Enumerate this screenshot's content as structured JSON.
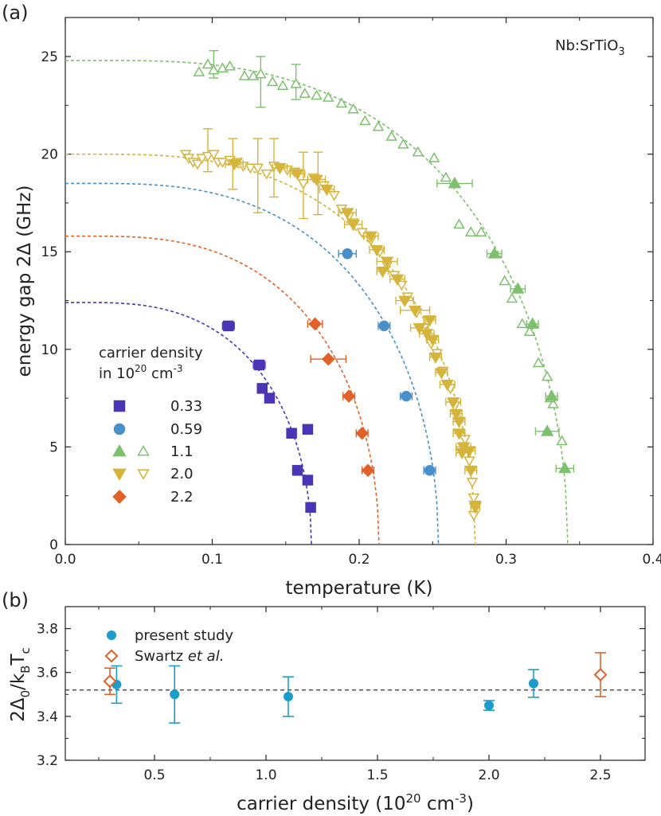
{
  "chart_data": [
    {
      "panel": "(a)",
      "type": "scatter",
      "annotation": {
        "base": "Nb:SrTiO",
        "sub": "3"
      },
      "xlabel": "temperature (K)",
      "ylabel": "energy gap 2Δ (GHz)",
      "xlim": [
        0.0,
        0.4
      ],
      "ylim": [
        0,
        27
      ],
      "xticks": [
        "0.0",
        "0.1",
        "0.2",
        "0.3",
        "0.4"
      ],
      "yticks": [
        "0",
        "5",
        "10",
        "15",
        "20",
        "25"
      ],
      "legend": {
        "title_line1": "carrier density",
        "title_line2_base": "in 10",
        "title_line2_sup1": "20",
        "title_line2_mid": " cm",
        "title_line2_sup2": "-3",
        "position": "lower-left"
      },
      "series": [
        {
          "name": "0.33",
          "color": "#4b35b5",
          "marker": "square",
          "fit": {
            "gap0": 12.4,
            "tc": 0.1675
          },
          "filled": [
            [
              0.111,
              11.2
            ],
            [
              0.132,
              9.2
            ],
            [
              0.134,
              8.0
            ],
            [
              0.139,
              7.5
            ],
            [
              0.154,
              5.7
            ],
            [
              0.165,
              5.9
            ],
            [
              0.158,
              3.8
            ],
            [
              0.165,
              3.3
            ],
            [
              0.167,
              1.9
            ]
          ],
          "xerr": [
            0.004,
            0.004,
            0.002,
            0.002,
            0.003,
            0.002,
            0.003,
            0.002,
            0.002
          ]
        },
        {
          "name": "0.59",
          "color": "#4a90c8",
          "marker": "circle",
          "fit": {
            "gap0": 18.5,
            "tc": 0.254
          },
          "filled": [
            [
              0.192,
              14.9
            ],
            [
              0.217,
              11.2
            ],
            [
              0.232,
              7.6
            ],
            [
              0.248,
              3.8
            ]
          ],
          "xerr": [
            0.006,
            0.004,
            0.004,
            0.004
          ]
        },
        {
          "name": "1.1",
          "color": "#7ec06e",
          "marker": "triangle-up",
          "fit": {
            "gap0": 24.8,
            "tc": 0.342
          },
          "filled": [
            [
              0.265,
              18.5
            ],
            [
              0.292,
              14.9
            ],
            [
              0.308,
              13.1
            ],
            [
              0.318,
              11.3
            ],
            [
              0.331,
              7.6
            ],
            [
              0.328,
              5.8
            ],
            [
              0.34,
              3.9
            ]
          ],
          "xerr": [
            0.012,
            0.005,
            0.005,
            0.004,
            0.004,
            0.008,
            0.006
          ],
          "open": [
            [
              0.091,
              24.2
            ],
            [
              0.097,
              24.6
            ],
            [
              0.101,
              24.3
            ],
            [
              0.107,
              24.4
            ],
            [
              0.112,
              24.5
            ],
            [
              0.122,
              24.0
            ],
            [
              0.128,
              24.0
            ],
            [
              0.133,
              24.1
            ],
            [
              0.141,
              23.7
            ],
            [
              0.148,
              23.5
            ],
            [
              0.157,
              23.6
            ],
            [
              0.163,
              23.1
            ],
            [
              0.171,
              23.0
            ],
            [
              0.179,
              22.9
            ],
            [
              0.188,
              22.6
            ],
            [
              0.196,
              22.3
            ],
            [
              0.204,
              21.7
            ],
            [
              0.213,
              21.4
            ],
            [
              0.222,
              20.9
            ],
            [
              0.23,
              20.5
            ],
            [
              0.24,
              20.1
            ],
            [
              0.251,
              19.8
            ],
            [
              0.259,
              18.8
            ],
            [
              0.268,
              16.4
            ],
            [
              0.276,
              16.0
            ],
            [
              0.283,
              16.0
            ],
            [
              0.299,
              13.5
            ],
            [
              0.304,
              12.6
            ],
            [
              0.311,
              11.3
            ],
            [
              0.316,
              10.9
            ],
            [
              0.322,
              9.3
            ],
            [
              0.328,
              8.6
            ],
            [
              0.332,
              7.2
            ],
            [
              0.338,
              5.3
            ],
            [
              0.33,
              7.5
            ]
          ],
          "open_yerr": [
            [
              0.101,
              24.6,
              0.7
            ],
            [
              0.133,
              23.7,
              1.3
            ],
            [
              0.157,
              23.7,
              0.9
            ]
          ]
        },
        {
          "name": "2.0",
          "color": "#d4b43a",
          "marker": "triangle-down",
          "fit": {
            "gap0": 20.0,
            "tc": 0.279
          },
          "filled": [
            [
              0.115,
              19.5
            ],
            [
              0.146,
              19.3
            ],
            [
              0.158,
              19.0
            ],
            [
              0.171,
              18.7
            ],
            [
              0.178,
              18.2
            ],
            [
              0.192,
              17.0
            ],
            [
              0.196,
              16.4
            ],
            [
              0.208,
              15.8
            ],
            [
              0.212,
              15.1
            ],
            [
              0.216,
              14.0
            ],
            [
              0.219,
              14.5
            ],
            [
              0.226,
              13.6
            ],
            [
              0.231,
              12.5
            ],
            [
              0.238,
              12.0
            ],
            [
              0.241,
              11.1
            ],
            [
              0.246,
              10.8
            ],
            [
              0.248,
              11.5
            ],
            [
              0.25,
              10.5
            ],
            [
              0.252,
              9.6
            ],
            [
              0.256,
              8.8
            ],
            [
              0.26,
              8.2
            ],
            [
              0.264,
              7.3
            ],
            [
              0.266,
              6.7
            ],
            [
              0.268,
              6.3
            ],
            [
              0.268,
              5.7
            ],
            [
              0.271,
              5.0
            ],
            [
              0.275,
              4.8
            ],
            [
              0.27,
              4.7
            ],
            [
              0.276,
              3.8
            ],
            [
              0.279,
              2.0
            ],
            [
              0.279,
              1.9
            ]
          ],
          "xerr": [
            0.006,
            0.005,
            0.005,
            0.006,
            0.005,
            0.006,
            0.006,
            0.005,
            0.005,
            0.004,
            0.007,
            0.005,
            0.006,
            0.01,
            0.006,
            0.005,
            0.004,
            0.004,
            0.004,
            0.004,
            0.005,
            0.005,
            0.004,
            0.004,
            0.004,
            0.005,
            0.004,
            0.004,
            0.004,
            0.003,
            0.003
          ],
          "open": [
            [
              0.082,
              20.0
            ],
            [
              0.084,
              19.8
            ],
            [
              0.087,
              19.6
            ],
            [
              0.09,
              19.5
            ],
            [
              0.093,
              19.8
            ],
            [
              0.097,
              19.9
            ],
            [
              0.101,
              20.0
            ],
            [
              0.104,
              19.6
            ],
            [
              0.107,
              19.6
            ],
            [
              0.112,
              19.7
            ],
            [
              0.117,
              19.6
            ],
            [
              0.121,
              19.4
            ],
            [
              0.126,
              19.3
            ],
            [
              0.131,
              19.3
            ],
            [
              0.137,
              19.0
            ],
            [
              0.142,
              19.4
            ],
            [
              0.151,
              19.2
            ],
            [
              0.156,
              19.1
            ],
            [
              0.162,
              18.5
            ],
            [
              0.169,
              18.8
            ],
            [
              0.176,
              18.4
            ],
            [
              0.183,
              17.9
            ],
            [
              0.188,
              17.2
            ],
            [
              0.193,
              16.8
            ],
            [
              0.196,
              16.5
            ],
            [
              0.202,
              16.0
            ],
            [
              0.208,
              15.6
            ],
            [
              0.214,
              15.0
            ],
            [
              0.219,
              14.3
            ],
            [
              0.224,
              13.8
            ],
            [
              0.229,
              13.3
            ],
            [
              0.233,
              12.7
            ],
            [
              0.239,
              11.9
            ],
            [
              0.244,
              11.1
            ],
            [
              0.249,
              10.3
            ],
            [
              0.253,
              9.8
            ],
            [
              0.257,
              8.9
            ],
            [
              0.262,
              8.0
            ],
            [
              0.265,
              7.1
            ],
            [
              0.268,
              6.3
            ],
            [
              0.272,
              5.4
            ],
            [
              0.275,
              4.3
            ],
            [
              0.277,
              3.2
            ],
            [
              0.278,
              2.4
            ],
            [
              0.278,
              1.5
            ]
          ],
          "open_yerr": [
            [
              0.097,
              20.2,
              1.1
            ],
            [
              0.114,
              19.5,
              1.3
            ],
            [
              0.131,
              18.9,
              1.9
            ],
            [
              0.142,
              19.3,
              1.5
            ],
            [
              0.162,
              18.4,
              1.7
            ],
            [
              0.172,
              18.5,
              1.6
            ]
          ]
        },
        {
          "name": "2.2",
          "color": "#e0622a",
          "marker": "diamond",
          "fit": {
            "gap0": 15.8,
            "tc": 0.2135
          },
          "filled": [
            [
              0.17,
              11.3
            ],
            [
              0.179,
              9.5
            ],
            [
              0.193,
              7.6
            ],
            [
              0.202,
              5.7
            ],
            [
              0.206,
              3.8
            ]
          ],
          "xerr": [
            0.005,
            0.012,
            0.004,
            0.004,
            0.004
          ]
        }
      ]
    },
    {
      "panel": "(b)",
      "type": "scatter",
      "xlabel_base": "carrier density (10",
      "xlabel_sup1": "20",
      "xlabel_mid": " cm",
      "xlabel_sup2": "-3",
      "xlabel_end": ")",
      "ylabel": {
        "a": "2Δ",
        "a_sub": "0",
        "b": "/k",
        "b_sub": "B",
        "c": "T",
        "c_sub": "c"
      },
      "xlim": [
        0.1,
        2.7
      ],
      "ylim": [
        3.2,
        3.9
      ],
      "xticks": [
        "0.5",
        "1.0",
        "1.5",
        "2.0",
        "2.5"
      ],
      "yticks": [
        "3.2",
        "3.4",
        "3.6",
        "3.8"
      ],
      "reference_line": 3.52,
      "legend_position": "top-left",
      "series": [
        {
          "name": "present study",
          "color": "#1c9cc9",
          "marker": "circle",
          "x": [
            0.33,
            0.59,
            1.1,
            2.0,
            2.2
          ],
          "y": [
            3.545,
            3.5,
            3.49,
            3.45,
            3.55
          ],
          "yerr": [
            0.085,
            0.13,
            0.09,
            0.022,
            0.063
          ]
        },
        {
          "name_base": "Swartz ",
          "name_italic": "et al.",
          "color": "#e0622a",
          "marker": "open-diamond",
          "x": [
            0.3,
            2.5
          ],
          "y": [
            3.56,
            3.59
          ],
          "yerr": [
            0.06,
            0.1
          ]
        }
      ]
    }
  ]
}
